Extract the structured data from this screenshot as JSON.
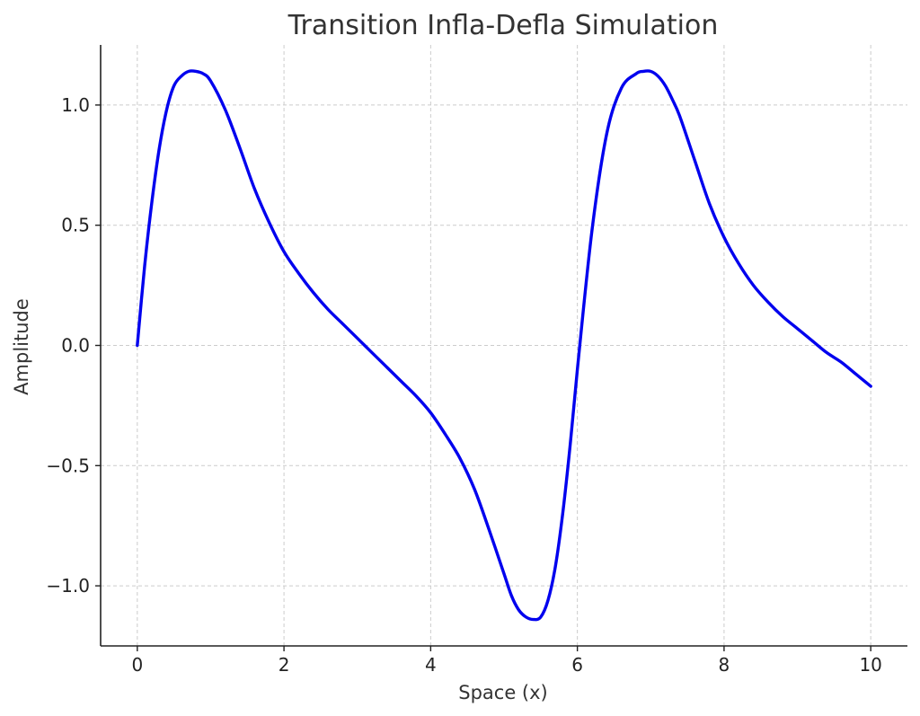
{
  "chart_data": {
    "type": "line",
    "title": "Transition Infla-Defla Simulation",
    "xlabel": "Space (x)",
    "ylabel": "Amplitude",
    "xlim": [
      -0.5,
      10.5
    ],
    "ylim": [
      -1.25,
      1.25
    ],
    "xticks": [
      0,
      2,
      4,
      6,
      8,
      10
    ],
    "xtick_labels": [
      "0",
      "2",
      "4",
      "6",
      "8",
      "10"
    ],
    "yticks": [
      -1.0,
      -0.5,
      0.0,
      0.5,
      1.0
    ],
    "ytick_labels": [
      "−1.0",
      "−0.5",
      "0.0",
      "0.5",
      "1.0"
    ],
    "grid": true,
    "series": [
      {
        "color": "#0000ee",
        "x": [
          0.0,
          0.1,
          0.2,
          0.3,
          0.4,
          0.5,
          0.6,
          0.7,
          0.8,
          0.9,
          1.0,
          1.2,
          1.4,
          1.6,
          1.8,
          2.0,
          2.2,
          2.4,
          2.6,
          2.8,
          3.0,
          3.2,
          3.4,
          3.6,
          3.8,
          4.0,
          4.2,
          4.4,
          4.6,
          4.8,
          5.0,
          5.1,
          5.2,
          5.3,
          5.4,
          5.5,
          5.6,
          5.7,
          5.8,
          5.9,
          6.0,
          6.2,
          6.4,
          6.6,
          6.8,
          6.9,
          7.0,
          7.1,
          7.2,
          7.3,
          7.4,
          7.6,
          7.8,
          8.0,
          8.2,
          8.4,
          8.6,
          8.8,
          9.0,
          9.2,
          9.4,
          9.6,
          9.8,
          10.0
        ],
        "y": [
          0.0,
          0.33,
          0.6,
          0.82,
          0.98,
          1.08,
          1.12,
          1.14,
          1.14,
          1.13,
          1.1,
          0.98,
          0.82,
          0.65,
          0.51,
          0.39,
          0.3,
          0.22,
          0.15,
          0.09,
          0.03,
          -0.03,
          -0.09,
          -0.15,
          -0.21,
          -0.28,
          -0.37,
          -0.47,
          -0.6,
          -0.77,
          -0.95,
          -1.04,
          -1.1,
          -1.13,
          -1.14,
          -1.13,
          -1.06,
          -0.92,
          -0.7,
          -0.42,
          -0.1,
          0.48,
          0.88,
          1.07,
          1.13,
          1.14,
          1.14,
          1.12,
          1.08,
          1.02,
          0.95,
          0.77,
          0.59,
          0.45,
          0.34,
          0.25,
          0.18,
          0.12,
          0.07,
          0.02,
          -0.03,
          -0.07,
          -0.12,
          -0.17
        ]
      }
    ]
  }
}
